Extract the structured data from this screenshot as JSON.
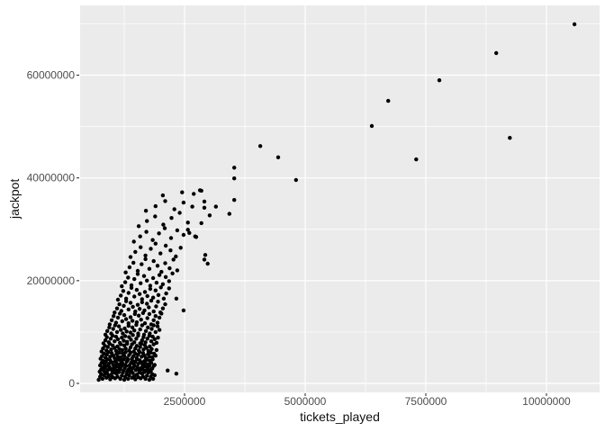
{
  "chart_data": {
    "type": "scatter",
    "title": "",
    "xlabel": "tickets_played",
    "ylabel": "jackpot",
    "legend": "none",
    "grid": "on",
    "panel_background": "#ebebeb",
    "x_ticks": [
      {
        "value": 2500000,
        "label": "2500000"
      },
      {
        "value": 5000000,
        "label": "5000000"
      },
      {
        "value": 7500000,
        "label": "7500000"
      },
      {
        "value": 10000000,
        "label": "10000000"
      }
    ],
    "y_ticks": [
      {
        "value": 0,
        "label": "0"
      },
      {
        "value": 20000000,
        "label": "20000000"
      },
      {
        "value": 40000000,
        "label": "40000000"
      },
      {
        "value": 60000000,
        "label": "60000000"
      }
    ],
    "x_minor_gridlines": [
      1250000,
      3750000,
      6250000,
      8750000
    ],
    "y_minor_gridlines": [
      10000000,
      30000000,
      50000000,
      70000000
    ],
    "x_domain": [
      336000,
      11101000
    ],
    "y_domain": [
      -1752000,
      73580000
    ],
    "point_radius_px": 2.2,
    "unit_multiplier": 1000000,
    "colors": {
      "panel_bg": "#ebebeb",
      "grid_major": "#ffffff",
      "grid_minor": "#ffffff",
      "point": "#000000",
      "tick_text": "#4d4d4d",
      "tick_mark": "#333333",
      "axis_title": "#111111"
    },
    "points_millions": [
      [
        0.72,
        0.7
      ],
      [
        0.75,
        1.3
      ],
      [
        0.77,
        1.8
      ],
      [
        0.8,
        0.9
      ],
      [
        0.83,
        1.6
      ],
      [
        0.85,
        2.2
      ],
      [
        0.88,
        1.1
      ],
      [
        0.9,
        1.9
      ],
      [
        0.93,
        1.4
      ],
      [
        0.96,
        0.8
      ],
      [
        0.98,
        1.7
      ],
      [
        1.01,
        1.2
      ],
      [
        1.04,
        2.1
      ],
      [
        1.06,
        1.0
      ],
      [
        1.09,
        1.9
      ],
      [
        1.11,
        1.3
      ],
      [
        1.14,
        2.2
      ],
      [
        1.17,
        0.9
      ],
      [
        1.2,
        1.5
      ],
      [
        1.22,
        2.1
      ],
      [
        1.25,
        0.7
      ],
      [
        1.27,
        1.3
      ],
      [
        1.3,
        1.8
      ],
      [
        1.33,
        0.9
      ],
      [
        1.35,
        1.6
      ],
      [
        1.38,
        2.2
      ],
      [
        1.41,
        1.1
      ],
      [
        1.43,
        2.0
      ],
      [
        1.46,
        1.4
      ],
      [
        1.48,
        0.8
      ],
      [
        1.51,
        1.7
      ],
      [
        1.54,
        1.2
      ],
      [
        1.56,
        2.1
      ],
      [
        1.59,
        1.0
      ],
      [
        1.62,
        1.9
      ],
      [
        1.64,
        1.3
      ],
      [
        1.67,
        2.2
      ],
      [
        1.69,
        0.9
      ],
      [
        1.72,
        1.5
      ],
      [
        1.75,
        2.1
      ],
      [
        1.77,
        0.7
      ],
      [
        1.8,
        1.3
      ],
      [
        1.83,
        1.8
      ],
      [
        1.85,
        0.9
      ],
      [
        1.88,
        1.6
      ],
      [
        0.74,
        2.3
      ],
      [
        0.77,
        2.7
      ],
      [
        0.8,
        3.1
      ],
      [
        0.83,
        2.4
      ],
      [
        0.85,
        3.0
      ],
      [
        0.88,
        3.4
      ],
      [
        0.91,
        2.6
      ],
      [
        0.94,
        3.2
      ],
      [
        0.97,
        2.8
      ],
      [
        1.0,
        2.4
      ],
      [
        1.03,
        3.0
      ],
      [
        1.06,
        2.7
      ],
      [
        1.08,
        3.3
      ],
      [
        1.11,
        2.5
      ],
      [
        1.14,
        3.2
      ],
      [
        1.17,
        2.8
      ],
      [
        1.2,
        3.4
      ],
      [
        1.23,
        2.4
      ],
      [
        1.26,
        2.9
      ],
      [
        1.29,
        3.4
      ],
      [
        1.31,
        2.3
      ],
      [
        1.34,
        2.7
      ],
      [
        1.37,
        3.1
      ],
      [
        1.4,
        2.4
      ],
      [
        1.43,
        3.0
      ],
      [
        1.46,
        3.4
      ],
      [
        1.49,
        2.6
      ],
      [
        1.52,
        3.2
      ],
      [
        1.54,
        2.8
      ],
      [
        1.57,
        2.4
      ],
      [
        1.6,
        3.0
      ],
      [
        1.63,
        2.7
      ],
      [
        1.66,
        3.3
      ],
      [
        1.69,
        2.5
      ],
      [
        1.72,
        3.2
      ],
      [
        1.75,
        2.8
      ],
      [
        1.77,
        3.4
      ],
      [
        1.8,
        2.4
      ],
      [
        1.83,
        2.9
      ],
      [
        1.86,
        3.4
      ],
      [
        0.75,
        3.5
      ],
      [
        0.78,
        4.0
      ],
      [
        0.81,
        4.4
      ],
      [
        0.84,
        3.7
      ],
      [
        0.87,
        4.2
      ],
      [
        0.9,
        4.7
      ],
      [
        0.93,
        3.8
      ],
      [
        0.96,
        4.5
      ],
      [
        0.99,
        4.1
      ],
      [
        1.02,
        3.6
      ],
      [
        1.06,
        4.3
      ],
      [
        1.09,
        3.9
      ],
      [
        1.12,
        4.6
      ],
      [
        1.15,
        3.7
      ],
      [
        1.18,
        4.4
      ],
      [
        1.21,
        4.0
      ],
      [
        1.24,
        4.7
      ],
      [
        1.27,
        3.6
      ],
      [
        1.3,
        4.2
      ],
      [
        1.33,
        4.6
      ],
      [
        1.36,
        3.5
      ],
      [
        1.39,
        4.0
      ],
      [
        1.42,
        4.4
      ],
      [
        1.45,
        3.7
      ],
      [
        1.48,
        4.2
      ],
      [
        1.51,
        4.7
      ],
      [
        1.54,
        3.8
      ],
      [
        1.57,
        4.5
      ],
      [
        1.6,
        4.1
      ],
      [
        1.63,
        3.6
      ],
      [
        1.66,
        4.3
      ],
      [
        1.69,
        3.9
      ],
      [
        1.72,
        4.6
      ],
      [
        1.75,
        3.7
      ],
      [
        1.78,
        4.4
      ],
      [
        1.81,
        4.0
      ],
      [
        1.84,
        4.7
      ],
      [
        1.88,
        3.6
      ],
      [
        0.76,
        4.8
      ],
      [
        0.79,
        5.3
      ],
      [
        0.83,
        5.8
      ],
      [
        0.86,
        5.0
      ],
      [
        0.89,
        5.6
      ],
      [
        0.92,
        6.1
      ],
      [
        0.96,
        5.2
      ],
      [
        0.99,
        5.9
      ],
      [
        1.02,
        5.4
      ],
      [
        1.05,
        4.9
      ],
      [
        1.09,
        5.7
      ],
      [
        1.12,
        5.2
      ],
      [
        1.15,
        6.0
      ],
      [
        1.18,
        5.1
      ],
      [
        1.22,
        5.8
      ],
      [
        1.25,
        5.4
      ],
      [
        1.28,
        6.1
      ],
      [
        1.31,
        4.9
      ],
      [
        1.35,
        5.5
      ],
      [
        1.38,
        6.0
      ],
      [
        1.41,
        4.8
      ],
      [
        1.44,
        5.3
      ],
      [
        1.48,
        5.8
      ],
      [
        1.51,
        5.0
      ],
      [
        1.54,
        5.6
      ],
      [
        1.57,
        6.1
      ],
      [
        1.61,
        5.2
      ],
      [
        1.64,
        5.9
      ],
      [
        1.67,
        5.4
      ],
      [
        1.7,
        4.9
      ],
      [
        1.74,
        5.7
      ],
      [
        1.77,
        5.2
      ],
      [
        1.8,
        6.0
      ],
      [
        1.83,
        5.1
      ],
      [
        1.87,
        5.8
      ],
      [
        1.9,
        5.4
      ],
      [
        0.78,
        6.2
      ],
      [
        0.81,
        6.8
      ],
      [
        0.85,
        7.3
      ],
      [
        0.88,
        6.4
      ],
      [
        0.91,
        7.1
      ],
      [
        0.95,
        7.7
      ],
      [
        0.98,
        6.6
      ],
      [
        1.01,
        7.4
      ],
      [
        1.05,
        6.9
      ],
      [
        1.08,
        6.3
      ],
      [
        1.11,
        7.2
      ],
      [
        1.15,
        6.7
      ],
      [
        1.18,
        7.6
      ],
      [
        1.21,
        6.5
      ],
      [
        1.25,
        7.4
      ],
      [
        1.28,
        6.8
      ],
      [
        1.31,
        7.7
      ],
      [
        1.35,
        6.4
      ],
      [
        1.38,
        7.0
      ],
      [
        1.41,
        7.6
      ],
      [
        1.45,
        6.2
      ],
      [
        1.48,
        6.8
      ],
      [
        1.51,
        7.3
      ],
      [
        1.55,
        6.4
      ],
      [
        1.58,
        7.1
      ],
      [
        1.61,
        7.7
      ],
      [
        1.65,
        6.6
      ],
      [
        1.68,
        7.4
      ],
      [
        1.71,
        6.9
      ],
      [
        1.75,
        6.3
      ],
      [
        1.78,
        7.2
      ],
      [
        1.82,
        6.7
      ],
      [
        1.86,
        7.6
      ],
      [
        1.92,
        6.5
      ],
      [
        0.82,
        7.8
      ],
      [
        0.86,
        8.4
      ],
      [
        0.89,
        9.0
      ],
      [
        0.93,
        8.0
      ],
      [
        0.97,
        8.7
      ],
      [
        1.01,
        9.3
      ],
      [
        1.05,
        8.2
      ],
      [
        1.08,
        9.1
      ],
      [
        1.12,
        8.6
      ],
      [
        1.16,
        7.9
      ],
      [
        1.2,
        8.9
      ],
      [
        1.24,
        8.3
      ],
      [
        1.27,
        9.2
      ],
      [
        1.31,
        8.1
      ],
      [
        1.35,
        9.0
      ],
      [
        1.39,
        8.5
      ],
      [
        1.43,
        9.4
      ],
      [
        1.46,
        8.0
      ],
      [
        1.5,
        8.7
      ],
      [
        1.54,
        9.3
      ],
      [
        1.58,
        7.8
      ],
      [
        1.62,
        8.4
      ],
      [
        1.65,
        9.0
      ],
      [
        1.69,
        8.0
      ],
      [
        1.73,
        8.7
      ],
      [
        1.77,
        9.3
      ],
      [
        1.81,
        8.2
      ],
      [
        1.84,
        9.1
      ],
      [
        1.88,
        8.6
      ],
      [
        1.92,
        7.9
      ],
      [
        1.95,
        8.9
      ],
      [
        0.86,
        9.5
      ],
      [
        0.9,
        10.2
      ],
      [
        0.94,
        10.9
      ],
      [
        0.98,
        9.7
      ],
      [
        1.02,
        10.6
      ],
      [
        1.06,
        11.3
      ],
      [
        1.1,
        10.0
      ],
      [
        1.14,
        11.1
      ],
      [
        1.18,
        10.4
      ],
      [
        1.22,
        9.7
      ],
      [
        1.26,
        10.7
      ],
      [
        1.3,
        10.1
      ],
      [
        1.34,
        11.2
      ],
      [
        1.38,
        9.9
      ],
      [
        1.42,
        10.9
      ],
      [
        1.46,
        10.3
      ],
      [
        1.5,
        11.4
      ],
      [
        1.54,
        9.7
      ],
      [
        1.58,
        10.5
      ],
      [
        1.62,
        11.3
      ],
      [
        1.66,
        9.5
      ],
      [
        1.7,
        10.2
      ],
      [
        1.74,
        10.9
      ],
      [
        1.78,
        9.7
      ],
      [
        1.82,
        10.6
      ],
      [
        1.86,
        11.3
      ],
      [
        1.9,
        10.0
      ],
      [
        1.94,
        11.1
      ],
      [
        1.98,
        10.4
      ],
      [
        0.95,
        11.5
      ],
      [
        0.99,
        12.3
      ],
      [
        1.03,
        13.1
      ],
      [
        1.08,
        11.8
      ],
      [
        1.12,
        12.8
      ],
      [
        1.16,
        13.6
      ],
      [
        1.21,
        12.1
      ],
      [
        1.25,
        13.3
      ],
      [
        1.29,
        12.5
      ],
      [
        1.34,
        11.7
      ],
      [
        1.38,
        12.9
      ],
      [
        1.42,
        12.2
      ],
      [
        1.47,
        13.5
      ],
      [
        1.51,
        11.9
      ],
      [
        1.55,
        13.2
      ],
      [
        1.6,
        12.4
      ],
      [
        1.64,
        13.7
      ],
      [
        1.68,
        11.7
      ],
      [
        1.73,
        12.7
      ],
      [
        1.77,
        13.5
      ],
      [
        1.81,
        11.5
      ],
      [
        1.86,
        12.3
      ],
      [
        1.9,
        13.1
      ],
      [
        1.94,
        11.8
      ],
      [
        1.98,
        12.8
      ],
      [
        2.02,
        13.6
      ],
      [
        1.05,
        13.8
      ],
      [
        1.1,
        14.6
      ],
      [
        1.15,
        15.4
      ],
      [
        1.19,
        14.1
      ],
      [
        1.24,
        15.1
      ],
      [
        1.29,
        16.0
      ],
      [
        1.34,
        14.4
      ],
      [
        1.38,
        15.7
      ],
      [
        1.43,
        14.9
      ],
      [
        1.48,
        14.0
      ],
      [
        1.53,
        15.3
      ],
      [
        1.57,
        14.5
      ],
      [
        1.62,
        15.8
      ],
      [
        1.67,
        14.2
      ],
      [
        1.72,
        15.5
      ],
      [
        1.76,
        14.8
      ],
      [
        1.81,
        16.1
      ],
      [
        1.86,
        14.0
      ],
      [
        1.91,
        15.0
      ],
      [
        1.95,
        15.9
      ],
      [
        2.0,
        13.8
      ],
      [
        2.05,
        14.6
      ],
      [
        2.1,
        15.4
      ],
      [
        1.12,
        16.3
      ],
      [
        1.18,
        17.1
      ],
      [
        1.23,
        18.0
      ],
      [
        1.29,
        16.5
      ],
      [
        1.34,
        17.6
      ],
      [
        1.4,
        18.6
      ],
      [
        1.46,
        16.9
      ],
      [
        1.51,
        18.2
      ],
      [
        1.57,
        17.4
      ],
      [
        1.62,
        16.4
      ],
      [
        1.68,
        17.8
      ],
      [
        1.73,
        17.0
      ],
      [
        1.79,
        18.4
      ],
      [
        1.85,
        16.7
      ],
      [
        1.9,
        18.1
      ],
      [
        1.96,
        17.2
      ],
      [
        2.01,
        18.7
      ],
      [
        2.07,
        16.5
      ],
      [
        2.12,
        17.5
      ],
      [
        2.18,
        18.5
      ],
      [
        1.2,
        18.9
      ],
      [
        1.27,
        19.7
      ],
      [
        1.33,
        20.6
      ],
      [
        1.4,
        19.1
      ],
      [
        1.46,
        20.3
      ],
      [
        1.53,
        21.3
      ],
      [
        1.59,
        19.5
      ],
      [
        1.66,
        20.9
      ],
      [
        1.72,
        20.0
      ],
      [
        1.79,
        19.0
      ],
      [
        1.85,
        20.5
      ],
      [
        1.92,
        19.6
      ],
      [
        1.98,
        21.1
      ],
      [
        2.05,
        19.3
      ],
      [
        2.11,
        20.7
      ],
      [
        2.18,
        19.9
      ],
      [
        2.25,
        21.4
      ],
      [
        1.28,
        21.6
      ],
      [
        1.36,
        22.6
      ],
      [
        1.44,
        23.5
      ],
      [
        1.53,
        21.9
      ],
      [
        1.61,
        23.2
      ],
      [
        1.69,
        24.2
      ],
      [
        1.77,
        22.3
      ],
      [
        1.86,
        23.8
      ],
      [
        1.94,
        22.9
      ],
      [
        2.02,
        21.7
      ],
      [
        2.1,
        23.4
      ],
      [
        2.19,
        22.4
      ],
      [
        2.27,
        24.1
      ],
      [
        2.35,
        22.0
      ],
      [
        1.38,
        24.6
      ],
      [
        1.48,
        25.6
      ],
      [
        1.59,
        26.5
      ],
      [
        1.69,
        24.9
      ],
      [
        1.8,
        26.2
      ],
      [
        1.9,
        27.2
      ],
      [
        2.0,
        25.3
      ],
      [
        2.11,
        26.8
      ],
      [
        2.21,
        25.9
      ],
      [
        2.32,
        24.7
      ],
      [
        2.42,
        26.4
      ],
      [
        1.45,
        27.6
      ],
      [
        1.58,
        28.6
      ],
      [
        1.71,
        29.5
      ],
      [
        1.84,
        27.9
      ],
      [
        1.97,
        29.2
      ],
      [
        2.09,
        30.2
      ],
      [
        2.22,
        28.3
      ],
      [
        2.35,
        29.8
      ],
      [
        2.48,
        28.9
      ],
      [
        2.6,
        29.3
      ],
      [
        2.72,
        28.6
      ],
      [
        1.55,
        30.6
      ],
      [
        1.72,
        31.6
      ],
      [
        1.89,
        32.5
      ],
      [
        2.06,
        30.9
      ],
      [
        2.23,
        32.2
      ],
      [
        2.4,
        33.2
      ],
      [
        2.57,
        31.3
      ],
      [
        1.7,
        33.6
      ],
      [
        1.9,
        34.5
      ],
      [
        2.1,
        35.5
      ],
      [
        2.29,
        33.9
      ],
      [
        2.48,
        35.2
      ],
      [
        2.66,
        34.4
      ],
      [
        2.05,
        36.6
      ],
      [
        2.45,
        37.2
      ],
      [
        2.69,
        36.9
      ],
      [
        2.82,
        37.6
      ],
      [
        2.15,
        2.5
      ],
      [
        2.33,
        1.9
      ],
      [
        2.48,
        14.2
      ],
      [
        2.33,
        16.5
      ],
      [
        2.98,
        23.3
      ],
      [
        2.91,
        24.1
      ],
      [
        2.93,
        25.0
      ],
      [
        2.57,
        29.9
      ],
      [
        2.74,
        28.5
      ],
      [
        2.85,
        31.2
      ],
      [
        3.02,
        32.7
      ],
      [
        3.15,
        34.4
      ],
      [
        2.91,
        34.2
      ],
      [
        2.91,
        35.4
      ],
      [
        2.85,
        37.5
      ],
      [
        3.43,
        33.0
      ],
      [
        3.53,
        35.7
      ],
      [
        3.53,
        39.9
      ],
      [
        3.53,
        42.0
      ],
      [
        4.07,
        46.2
      ],
      [
        4.44,
        44.0
      ],
      [
        4.81,
        39.6
      ],
      [
        6.38,
        50.1
      ],
      [
        6.72,
        55.0
      ],
      [
        7.3,
        43.6
      ],
      [
        7.78,
        59.0
      ],
      [
        8.96,
        64.3
      ],
      [
        9.24,
        47.8
      ],
      [
        10.58,
        69.9
      ]
    ]
  }
}
